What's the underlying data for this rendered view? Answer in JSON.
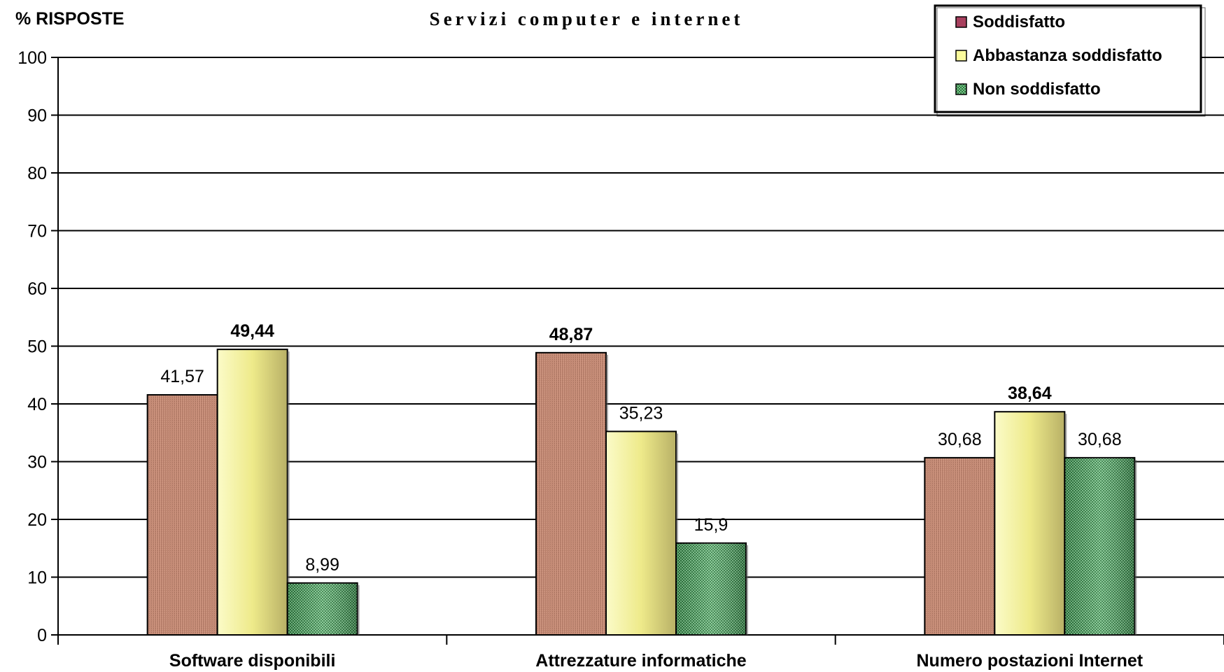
{
  "chart_data": {
    "type": "bar",
    "title": "Servizi computer e internet",
    "ylabel": "% RISPOSTE",
    "xlabel": "",
    "ylim": [
      0,
      100
    ],
    "yticks": [
      "0",
      "10",
      "20",
      "30",
      "40",
      "50",
      "60",
      "70",
      "80",
      "90",
      "100"
    ],
    "grid": true,
    "legend_position": "top-right",
    "categories": [
      "Software disponibili",
      "Attrezzature informatiche",
      "Numero postazioni Internet"
    ],
    "series": [
      {
        "name": "Soddisfatto",
        "color": "#c8907a",
        "values": [
          41.57,
          48.87,
          30.68
        ],
        "labels": [
          "41,57",
          "48,87",
          "30,68"
        ]
      },
      {
        "name": "Abbastanza soddisfatto",
        "color": "#f0ee98",
        "values": [
          49.44,
          35.23,
          38.64
        ],
        "labels": [
          "49,44",
          "35,23",
          "38,64"
        ]
      },
      {
        "name": "Non soddisfatto",
        "color": "#4a9a5c",
        "values": [
          8.99,
          15.9,
          30.68
        ],
        "labels": [
          "8,99",
          "15,9",
          "30,68"
        ]
      }
    ],
    "bold_labels": [
      [
        false,
        true,
        false
      ],
      [
        true,
        false,
        false
      ],
      [
        false,
        true,
        false
      ]
    ]
  }
}
